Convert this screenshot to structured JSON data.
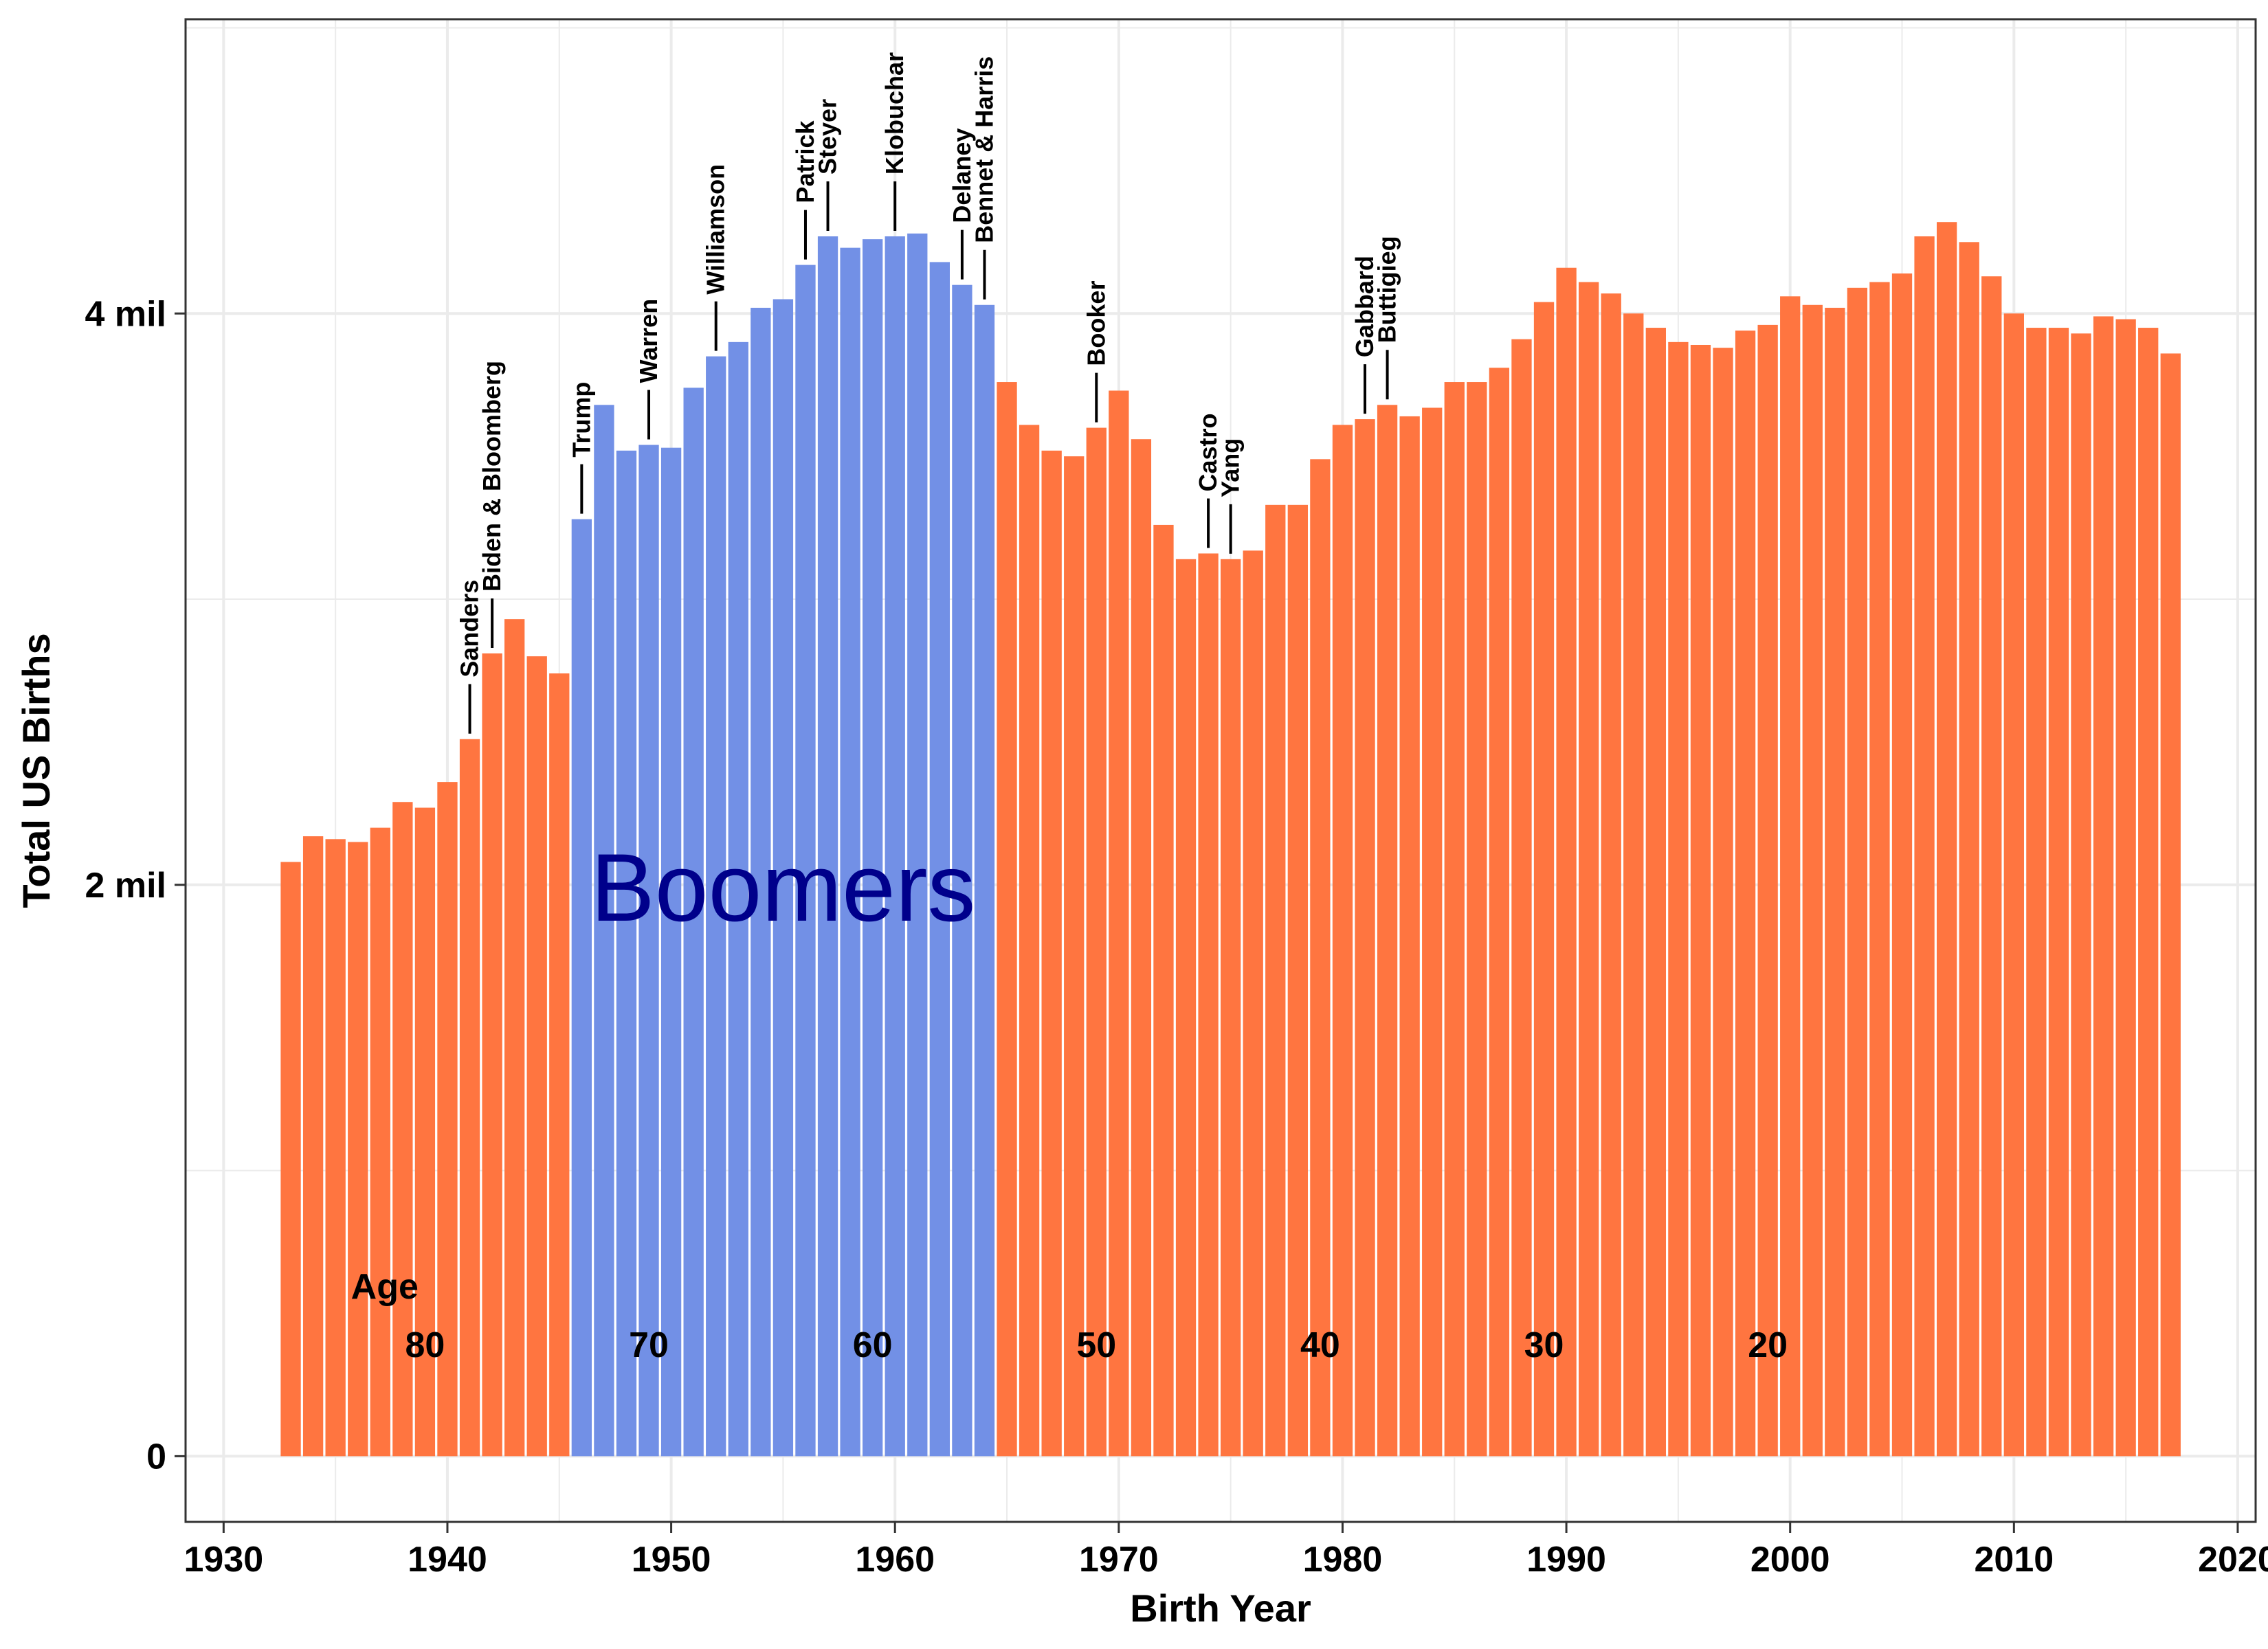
{
  "chart_data": {
    "type": "bar",
    "title": "",
    "xlabel": "Birth Year",
    "ylabel": "Total US Births",
    "xlim": [
      1928.3,
      2020.8
    ],
    "ylim": [
      -0.23,
      5.03
    ],
    "xticks": [
      1930,
      1940,
      1950,
      1960,
      1970,
      1980,
      1990,
      2000,
      2010,
      2020
    ],
    "xtick_labels": [
      "1930",
      "1940",
      "1950",
      "1960",
      "1970",
      "1980",
      "1990",
      "2000",
      "2010",
      "2020"
    ],
    "yticks": [
      0,
      2,
      4
    ],
    "ytick_labels": [
      "0",
      "2 mil",
      "4 mil"
    ],
    "grid": true,
    "colors": {
      "boomer": "#7290e6",
      "other": "#ff7540",
      "highlight_text": "#00008b"
    },
    "boomer_range": [
      1946,
      1964
    ],
    "x": [
      1933,
      1934,
      1935,
      1936,
      1937,
      1938,
      1939,
      1940,
      1941,
      1942,
      1943,
      1944,
      1945,
      1946,
      1947,
      1948,
      1949,
      1950,
      1951,
      1952,
      1953,
      1954,
      1955,
      1956,
      1957,
      1958,
      1959,
      1960,
      1961,
      1962,
      1963,
      1964,
      1965,
      1966,
      1967,
      1968,
      1969,
      1970,
      1971,
      1972,
      1973,
      1974,
      1975,
      1976,
      1977,
      1978,
      1979,
      1980,
      1981,
      1982,
      1983,
      1984,
      1985,
      1986,
      1987,
      1988,
      1989,
      1990,
      1991,
      1992,
      1993,
      1994,
      1995,
      1996,
      1997,
      1998,
      1999,
      2000,
      2001,
      2002,
      2003,
      2004,
      2005,
      2006,
      2007,
      2008,
      2009,
      2010,
      2011,
      2012,
      2013,
      2014,
      2015,
      2016,
      2017
    ],
    "values": [
      2.08,
      2.17,
      2.16,
      2.15,
      2.2,
      2.29,
      2.27,
      2.36,
      2.51,
      2.81,
      2.93,
      2.8,
      2.74,
      3.28,
      3.68,
      3.52,
      3.54,
      3.53,
      3.74,
      3.85,
      3.9,
      4.02,
      4.05,
      4.17,
      4.27,
      4.23,
      4.26,
      4.27,
      4.28,
      4.18,
      4.1,
      4.03,
      3.76,
      3.61,
      3.52,
      3.5,
      3.6,
      3.73,
      3.56,
      3.26,
      3.14,
      3.16,
      3.14,
      3.17,
      3.33,
      3.33,
      3.49,
      3.61,
      3.63,
      3.68,
      3.64,
      3.67,
      3.76,
      3.76,
      3.81,
      3.91,
      4.04,
      4.16,
      4.11,
      4.07,
      4.0,
      3.95,
      3.9,
      3.89,
      3.88,
      3.94,
      3.96,
      4.06,
      4.03,
      4.02,
      4.09,
      4.11,
      4.14,
      4.27,
      4.32,
      4.25,
      4.13,
      4.0,
      3.95,
      3.95,
      3.93,
      3.99,
      3.98,
      3.95,
      3.86
    ],
    "annotations": [
      {
        "label": "Sanders",
        "x": 1941
      },
      {
        "label": "Biden & Bloomberg",
        "x": 1942
      },
      {
        "label": "Trump",
        "x": 1946
      },
      {
        "label": "Warren",
        "x": 1949
      },
      {
        "label": "Williamson",
        "x": 1952
      },
      {
        "label": "Patrick",
        "x": 1956
      },
      {
        "label": "Steyer",
        "x": 1957
      },
      {
        "label": "Klobuchar",
        "x": 1960
      },
      {
        "label": "Delaney",
        "x": 1963
      },
      {
        "label": "Bennet & Harris",
        "x": 1964
      },
      {
        "label": "Booker",
        "x": 1969
      },
      {
        "label": "Castro",
        "x": 1974
      },
      {
        "label": "Yang",
        "x": 1975
      },
      {
        "label": "Gabbard",
        "x": 1981
      },
      {
        "label": "Buttigieg",
        "x": 1982
      }
    ],
    "age_title": "Age",
    "age_labels": [
      {
        "label": "80",
        "x": 1939
      },
      {
        "label": "70",
        "x": 1949
      },
      {
        "label": "60",
        "x": 1959
      },
      {
        "label": "50",
        "x": 1969
      },
      {
        "label": "40",
        "x": 1979
      },
      {
        "label": "30",
        "x": 1989
      },
      {
        "label": "20",
        "x": 1999
      }
    ],
    "highlight_label": "Boomers"
  }
}
